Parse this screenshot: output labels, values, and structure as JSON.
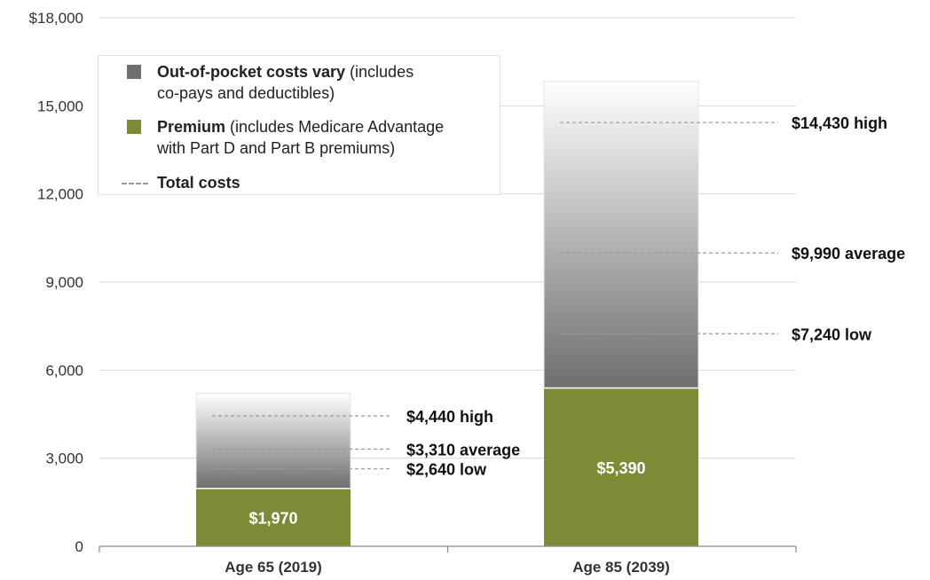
{
  "chart_data": {
    "type": "bar",
    "stacked": true,
    "categories": [
      "Age 65 (2019)",
      "Age 85 (2039)"
    ],
    "series": [
      {
        "name": "Premium",
        "values": [
          1970,
          5390
        ],
        "color": "#7f8a37",
        "labels": [
          "$1,970",
          "$5,390"
        ]
      },
      {
        "name": "Out-of-pocket costs vary",
        "values": [
          3240,
          10440
        ],
        "color": "#6e6e6e"
      }
    ],
    "range_markers": [
      [
        {
          "value": 4440,
          "label": "$4,440 high"
        },
        {
          "value": 3310,
          "label": "$3,310 average"
        },
        {
          "value": 2640,
          "label": "$2,640 low"
        }
      ],
      [
        {
          "value": 14430,
          "label": "$14,430 high"
        },
        {
          "value": 9990,
          "label": "$9,990 average"
        },
        {
          "value": 7240,
          "label": "$7,240 low"
        }
      ]
    ],
    "y_ticks": [
      "0",
      "3,000",
      "6,000",
      "9,000",
      "12,000",
      "15,000",
      "$18,000"
    ],
    "ylim": [
      0,
      18000
    ],
    "grid": true,
    "legend_position": "top-left",
    "colors": {
      "premium": "#7f8a37",
      "oop_dark": "#6e6e6e",
      "oop_light": "#ffffff",
      "grid": "#d9d9d9",
      "marker": "#9a9a9a"
    }
  },
  "legend": {
    "oop_bold": "Out-of-pocket costs vary",
    "oop_rest": " (includes",
    "oop_line2": "co-pays and deductibles)",
    "premium_bold": "Premium",
    "premium_rest": " (includes Medicare Advantage",
    "premium_line2": "with Part D and Part B premiums)",
    "total_label": "Total costs"
  }
}
